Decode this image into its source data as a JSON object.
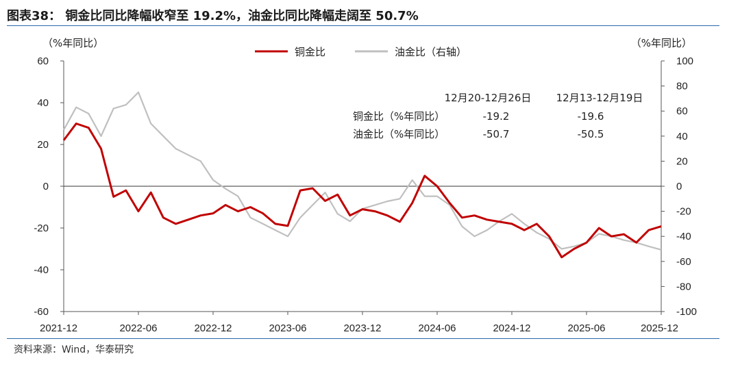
{
  "title": "图表38： 铜金比同比降幅收窄至 19.2%，油金比同比降幅走阔至 50.7%",
  "source": "资料来源：Wind，华泰研究",
  "chart_data": {
    "type": "line",
    "left_unit": "（%年同比）",
    "right_unit": "（%年同比）",
    "x_tick_labels": [
      "2021-12",
      "2022-06",
      "2022-12",
      "2023-06",
      "2023-12",
      "2024-06",
      "2024-12",
      "2025-06",
      "2025-12"
    ],
    "x_range": [
      "2021-12",
      "2025-12"
    ],
    "left_axis": {
      "ylim": [
        -60,
        60
      ],
      "ticks": [
        60,
        40,
        20,
        0,
        -20,
        -40,
        -60
      ]
    },
    "right_axis": {
      "ylim": [
        -100,
        100
      ],
      "ticks": [
        100,
        80,
        60,
        40,
        20,
        0,
        -20,
        -40,
        -60,
        -80,
        -100
      ]
    },
    "legend_position": "top-center",
    "grid": false,
    "series": [
      {
        "name": "铜金比",
        "axis": "left",
        "color": "#c00000",
        "points": [
          [
            "2021-12",
            22
          ],
          [
            "2022-01",
            30
          ],
          [
            "2022-02",
            28
          ],
          [
            "2022-03",
            18
          ],
          [
            "2022-04",
            -5
          ],
          [
            "2022-05",
            -2
          ],
          [
            "2022-06",
            -12
          ],
          [
            "2022-07",
            -3
          ],
          [
            "2022-08",
            -15
          ],
          [
            "2022-09",
            -18
          ],
          [
            "2022-10",
            -16
          ],
          [
            "2022-11",
            -14
          ],
          [
            "2022-12",
            -13
          ],
          [
            "2023-01",
            -9
          ],
          [
            "2023-02",
            -12
          ],
          [
            "2023-03",
            -10
          ],
          [
            "2023-04",
            -13
          ],
          [
            "2023-05",
            -18
          ],
          [
            "2023-06",
            -19
          ],
          [
            "2023-07",
            -2
          ],
          [
            "2023-08",
            -1
          ],
          [
            "2023-09",
            -7
          ],
          [
            "2023-10",
            -4
          ],
          [
            "2023-11",
            -14
          ],
          [
            "2023-12",
            -11
          ],
          [
            "2024-01",
            -12
          ],
          [
            "2024-02",
            -14
          ],
          [
            "2024-03",
            -17
          ],
          [
            "2024-04",
            -8
          ],
          [
            "2024-05",
            5
          ],
          [
            "2024-06",
            0
          ],
          [
            "2024-07",
            -8
          ],
          [
            "2024-08",
            -15
          ],
          [
            "2024-09",
            -14
          ],
          [
            "2024-10",
            -16
          ],
          [
            "2024-11",
            -17
          ],
          [
            "2024-12",
            -18
          ],
          [
            "2025-01",
            -21
          ],
          [
            "2025-02",
            -18
          ],
          [
            "2025-03",
            -24
          ],
          [
            "2025-04",
            -34
          ],
          [
            "2025-05",
            -30
          ],
          [
            "2025-06",
            -27
          ],
          [
            "2025-07",
            -20
          ],
          [
            "2025-08",
            -24
          ],
          [
            "2025-09",
            -23
          ],
          [
            "2025-10",
            -27
          ],
          [
            "2025-11",
            -21
          ],
          [
            "2025-12",
            -19.2
          ]
        ]
      },
      {
        "name": "油金比（右轴）",
        "axis": "right",
        "color": "#bfbfbf",
        "points": [
          [
            "2021-12",
            45
          ],
          [
            "2022-01",
            63
          ],
          [
            "2022-02",
            58
          ],
          [
            "2022-03",
            40
          ],
          [
            "2022-04",
            62
          ],
          [
            "2022-05",
            65
          ],
          [
            "2022-06",
            75
          ],
          [
            "2022-07",
            50
          ],
          [
            "2022-08",
            40
          ],
          [
            "2022-09",
            30
          ],
          [
            "2022-10",
            25
          ],
          [
            "2022-11",
            20
          ],
          [
            "2022-12",
            5
          ],
          [
            "2023-01",
            -2
          ],
          [
            "2023-02",
            -8
          ],
          [
            "2023-03",
            -25
          ],
          [
            "2023-04",
            -30
          ],
          [
            "2023-05",
            -35
          ],
          [
            "2023-06",
            -40
          ],
          [
            "2023-07",
            -25
          ],
          [
            "2023-08",
            -15
          ],
          [
            "2023-09",
            -5
          ],
          [
            "2023-10",
            -22
          ],
          [
            "2023-11",
            -28
          ],
          [
            "2023-12",
            -18
          ],
          [
            "2024-01",
            -15
          ],
          [
            "2024-02",
            -12
          ],
          [
            "2024-03",
            -10
          ],
          [
            "2024-04",
            5
          ],
          [
            "2024-05",
            -8
          ],
          [
            "2024-06",
            -8
          ],
          [
            "2024-07",
            -15
          ],
          [
            "2024-08",
            -32
          ],
          [
            "2024-09",
            -40
          ],
          [
            "2024-10",
            -35
          ],
          [
            "2024-11",
            -28
          ],
          [
            "2024-12",
            -22
          ],
          [
            "2025-01",
            -30
          ],
          [
            "2025-02",
            -37
          ],
          [
            "2025-03",
            -42
          ],
          [
            "2025-04",
            -50
          ],
          [
            "2025-05",
            -48
          ],
          [
            "2025-06",
            -45
          ],
          [
            "2025-07",
            -38
          ],
          [
            "2025-08",
            -40
          ],
          [
            "2025-09",
            -43
          ],
          [
            "2025-10",
            -45
          ],
          [
            "2025-11",
            -48
          ],
          [
            "2025-12",
            -50.7
          ]
        ]
      }
    ],
    "table": {
      "col1_header": "12月20-12月26日",
      "col2_header": "12月13-12月19日",
      "rows": [
        {
          "label": "铜金比（%年同比）",
          "v1": "-19.2",
          "v2": "-19.6"
        },
        {
          "label": "油金比（%年同比）",
          "v1": "-50.7",
          "v2": "-50.5"
        }
      ]
    }
  }
}
